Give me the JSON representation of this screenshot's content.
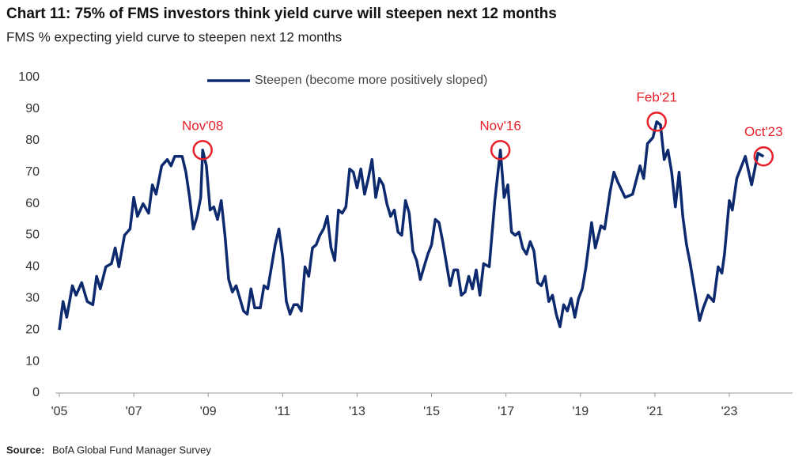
{
  "chart_data": {
    "type": "line",
    "title": "Chart 11: 75% of FMS investors think yield curve will steepen next 12 months",
    "subtitle": "FMS % expecting yield curve to steepen next 12 months",
    "source_label": "Source:",
    "source": "BofA Global Fund Manager Survey",
    "legend": "top",
    "xlim": [
      2004.9,
      2024.7
    ],
    "ylim": [
      0,
      100
    ],
    "yticks": [
      0,
      10,
      20,
      30,
      40,
      50,
      60,
      70,
      80,
      90,
      100
    ],
    "xticks": [
      {
        "value": 2005,
        "label": "'05"
      },
      {
        "value": 2007,
        "label": "'07"
      },
      {
        "value": 2009,
        "label": "'09"
      },
      {
        "value": 2011,
        "label": "'11"
      },
      {
        "value": 2013,
        "label": "'13"
      },
      {
        "value": 2015,
        "label": "'15"
      },
      {
        "value": 2017,
        "label": "'17"
      },
      {
        "value": 2019,
        "label": "'19"
      },
      {
        "value": 2021,
        "label": "'21"
      },
      {
        "value": 2023,
        "label": "'23"
      }
    ],
    "x": [
      2005.0,
      2005.1,
      2005.2,
      2005.35,
      2005.45,
      2005.6,
      2005.75,
      2005.9,
      2006.0,
      2006.1,
      2006.25,
      2006.4,
      2006.5,
      2006.6,
      2006.75,
      2006.9,
      2007.0,
      2007.1,
      2007.25,
      2007.4,
      2007.5,
      2007.6,
      2007.75,
      2007.9,
      2008.0,
      2008.1,
      2008.3,
      2008.4,
      2008.5,
      2008.6,
      2008.7,
      2008.8,
      2008.85,
      2008.95,
      2009.05,
      2009.15,
      2009.25,
      2009.35,
      2009.45,
      2009.55,
      2009.65,
      2009.75,
      2009.85,
      2009.95,
      2010.05,
      2010.15,
      2010.25,
      2010.4,
      2010.5,
      2010.6,
      2010.7,
      2010.8,
      2010.9,
      2011.0,
      2011.1,
      2011.2,
      2011.3,
      2011.4,
      2011.5,
      2011.6,
      2011.7,
      2011.8,
      2011.9,
      2012.0,
      2012.1,
      2012.2,
      2012.3,
      2012.4,
      2012.5,
      2012.6,
      2012.7,
      2012.8,
      2012.9,
      2013.0,
      2013.1,
      2013.2,
      2013.3,
      2013.4,
      2013.5,
      2013.6,
      2013.7,
      2013.8,
      2013.9,
      2014.0,
      2014.1,
      2014.2,
      2014.3,
      2014.4,
      2014.5,
      2014.6,
      2014.7,
      2014.8,
      2014.9,
      2015.0,
      2015.1,
      2015.2,
      2015.3,
      2015.4,
      2015.5,
      2015.6,
      2015.7,
      2015.8,
      2015.9,
      2016.0,
      2016.1,
      2016.2,
      2016.3,
      2016.4,
      2016.55,
      2016.7,
      2016.85,
      2016.95,
      2017.05,
      2017.15,
      2017.25,
      2017.35,
      2017.45,
      2017.55,
      2017.65,
      2017.75,
      2017.85,
      2017.95,
      2018.05,
      2018.15,
      2018.25,
      2018.35,
      2018.45,
      2018.55,
      2018.65,
      2018.75,
      2018.85,
      2018.95,
      2019.05,
      2019.15,
      2019.3,
      2019.4,
      2019.55,
      2019.65,
      2019.8,
      2019.9,
      2020.0,
      2020.2,
      2020.4,
      2020.6,
      2020.7,
      2020.8,
      2020.95,
      2021.05,
      2021.15,
      2021.25,
      2021.35,
      2021.45,
      2021.55,
      2021.65,
      2021.75,
      2021.85,
      2021.95,
      2022.2,
      2022.3,
      2022.43,
      2022.58,
      2022.7,
      2022.8,
      2022.87,
      2023.0,
      2023.08,
      2023.2,
      2023.43,
      2023.6,
      2023.77,
      2023.92
    ],
    "series": [
      {
        "name": "Steepen (become more positively sloped)",
        "color": "#0d2a6e",
        "values": [
          20,
          29,
          24,
          34,
          31,
          35,
          29,
          28,
          37,
          33,
          40,
          41,
          46,
          40,
          50,
          52,
          62,
          56,
          60,
          57,
          66,
          63,
          72,
          74,
          72,
          75,
          75,
          70,
          62,
          52,
          56,
          62,
          77,
          72,
          58,
          59,
          55,
          61,
          50,
          36,
          32,
          34,
          30,
          26,
          25,
          33,
          27,
          27,
          34,
          33,
          40,
          47,
          52,
          43,
          29,
          25,
          28,
          28,
          26,
          40,
          37,
          46,
          47,
          50,
          52,
          56,
          46,
          42,
          58,
          57,
          59,
          71,
          70,
          65,
          71,
          63,
          68,
          74,
          62,
          68,
          66,
          60,
          56,
          58,
          51,
          50,
          61,
          57,
          45,
          42,
          36,
          40,
          44,
          47,
          55,
          54,
          48,
          41,
          34,
          39,
          39,
          31,
          32,
          37,
          33,
          39,
          31,
          41,
          40,
          61,
          77,
          62,
          66,
          51,
          50,
          51,
          46,
          44,
          48,
          45,
          35,
          34,
          37,
          29,
          31,
          25,
          21,
          28,
          26,
          30,
          24,
          30,
          33,
          40,
          54,
          46,
          53,
          52,
          64,
          70,
          67,
          62,
          63,
          72,
          68,
          79,
          81,
          86,
          85,
          74,
          77,
          70,
          59,
          70,
          56,
          47,
          41,
          23,
          27,
          31,
          29,
          40,
          38,
          44,
          61,
          58,
          68,
          75,
          66,
          76,
          75
        ]
      }
    ],
    "annotations": [
      {
        "text": "Nov'08",
        "x": 2008.85,
        "y": 77
      },
      {
        "text": "Nov'16",
        "x": 2016.85,
        "y": 77
      },
      {
        "text": "Feb'21",
        "x": 2021.05,
        "y": 86
      },
      {
        "text": "Oct'23",
        "x": 2023.92,
        "y": 75
      }
    ],
    "annotation_color": "#e8202a"
  }
}
